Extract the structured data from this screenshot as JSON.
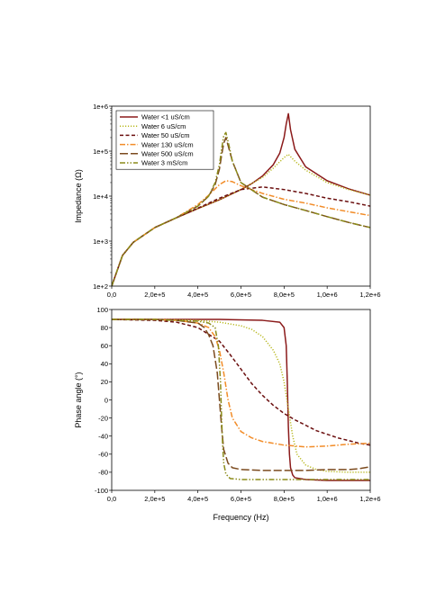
{
  "chart_data": [
    {
      "type": "line",
      "panel": "top",
      "xlabel": "",
      "ylabel": "Impedance (Ω)",
      "xlim": [
        0,
        1200000
      ],
      "ylim": [
        100,
        1000000
      ],
      "yscale": "log",
      "x_tick_labels": [
        "0,0",
        "2,0e+5",
        "4,0e+5",
        "6,0e+5",
        "8,0e+5",
        "1,0e+6",
        "1,2e+6"
      ],
      "y_tick_labels": [
        "1e+2",
        "1e+3",
        "1e+4",
        "1e+5",
        "1e+6"
      ],
      "legend_position": "top-left",
      "series": [
        {
          "name": "Water <1 uS/cm",
          "color": "#8B1A1A",
          "dash": "solid",
          "x": [
            0,
            50000,
            100000,
            200000,
            300000,
            400000,
            500000,
            600000,
            650000,
            700000,
            750000,
            780000,
            800000,
            810000,
            820000,
            830000,
            850000,
            900000,
            1000000,
            1100000,
            1200000
          ],
          "y": [
            100,
            480,
            940,
            2000,
            3300,
            5300,
            8300,
            14000,
            19000,
            28000,
            50000,
            90000,
            200000,
            400000,
            680000,
            300000,
            110000,
            45000,
            22000,
            14500,
            10500
          ]
        },
        {
          "name": "Water 6 uS/cm",
          "color": "#B8B820",
          "dash": "dotted",
          "x": [
            0,
            50000,
            100000,
            200000,
            300000,
            400000,
            500000,
            600000,
            700000,
            750000,
            800000,
            820000,
            850000,
            900000,
            1000000,
            1100000,
            1200000
          ],
          "y": [
            100,
            480,
            940,
            2000,
            3300,
            5300,
            8300,
            14000,
            26000,
            42000,
            72000,
            85000,
            60000,
            38000,
            20000,
            14000,
            10500
          ]
        },
        {
          "name": "Water 50 uS/cm",
          "color": "#6B0F0F",
          "dash": "dashed",
          "x": [
            0,
            50000,
            100000,
            200000,
            300000,
            400000,
            500000,
            600000,
            700000,
            800000,
            900000,
            1000000,
            1100000,
            1200000
          ],
          "y": [
            100,
            480,
            940,
            2000,
            3300,
            5400,
            9000,
            14000,
            16000,
            14000,
            11500,
            9000,
            7500,
            6000
          ]
        },
        {
          "name": "Water 130 uS/cm",
          "color": "#F28C28",
          "dash": "dashdot",
          "x": [
            0,
            50000,
            100000,
            200000,
            300000,
            400000,
            450000,
            500000,
            530000,
            560000,
            600000,
            700000,
            800000,
            900000,
            1000000,
            1100000,
            1200000
          ],
          "y": [
            100,
            480,
            940,
            2000,
            3300,
            6500,
            10500,
            18000,
            22000,
            21000,
            17000,
            11500,
            8500,
            7000,
            5500,
            4500,
            3700
          ]
        },
        {
          "name": "Water 500 uS/cm",
          "color": "#7B4A1E",
          "dash": "longdash",
          "x": [
            0,
            50000,
            100000,
            200000,
            300000,
            400000,
            450000,
            480000,
            500000,
            510000,
            520000,
            530000,
            545000,
            560000,
            600000,
            700000,
            800000,
            900000,
            1000000,
            1100000,
            1200000
          ],
          "y": [
            100,
            480,
            940,
            2000,
            3300,
            6000,
            10000,
            18000,
            40000,
            80000,
            150000,
            200000,
            110000,
            60000,
            20000,
            9500,
            6500,
            4800,
            3500,
            2600,
            2000
          ]
        },
        {
          "name": "Water 3 mS/cm",
          "color": "#8B8B1A",
          "dash": "dashdotdot",
          "x": [
            0,
            50000,
            100000,
            200000,
            300000,
            400000,
            450000,
            480000,
            500000,
            510000,
            520000,
            530000,
            545000,
            560000,
            600000,
            700000,
            800000,
            900000,
            1000000,
            1100000,
            1200000
          ],
          "y": [
            100,
            480,
            940,
            2000,
            3300,
            6000,
            10000,
            20000,
            50000,
            110000,
            220000,
            260000,
            130000,
            60000,
            20000,
            9500,
            6500,
            4800,
            3500,
            2600,
            2000
          ]
        }
      ]
    },
    {
      "type": "line",
      "panel": "bottom",
      "xlabel": "Frequency (Hz)",
      "ylabel": "Phase angle (°)",
      "xlim": [
        0,
        1200000
      ],
      "ylim": [
        -100,
        100
      ],
      "x_tick_labels": [
        "0,0",
        "2,0e+5",
        "4,0e+5",
        "6,0e+5",
        "8,0e+5",
        "1,0e+6",
        "1,2e+6"
      ],
      "y_tick_labels": [
        "-100",
        "-80",
        "-60",
        "-40",
        "-20",
        "0",
        "20",
        "40",
        "60",
        "80",
        "100"
      ],
      "series": [
        {
          "name": "Water <1 uS/cm",
          "color": "#8B1A1A",
          "dash": "solid",
          "x": [
            0,
            200000,
            500000,
            700000,
            780000,
            800000,
            810000,
            815000,
            820000,
            825000,
            830000,
            840000,
            850000,
            900000,
            1000000,
            1200000
          ],
          "y": [
            89,
            89,
            89,
            88,
            86,
            80,
            60,
            20,
            -30,
            -60,
            -75,
            -83,
            -86,
            -88,
            -89,
            -89
          ]
        },
        {
          "name": "Water 6 uS/cm",
          "color": "#B8B820",
          "dash": "dotted",
          "x": [
            0,
            200000,
            400000,
            500000,
            600000,
            650000,
            700000,
            750000,
            780000,
            800000,
            820000,
            840000,
            860000,
            900000,
            950000,
            1000000,
            1100000,
            1200000
          ],
          "y": [
            89,
            89,
            88,
            86,
            82,
            78,
            70,
            55,
            40,
            20,
            -10,
            -40,
            -60,
            -72,
            -77,
            -79,
            -80,
            -80
          ]
        },
        {
          "name": "Water 50 uS/cm",
          "color": "#6B0F0F",
          "dash": "dashed",
          "x": [
            0,
            200000,
            300000,
            400000,
            500000,
            550000,
            600000,
            650000,
            700000,
            750000,
            800000,
            850000,
            900000,
            950000,
            1000000,
            1050000,
            1100000,
            1150000,
            1200000
          ],
          "y": [
            89,
            88,
            86,
            80,
            65,
            50,
            34,
            18,
            5,
            -6,
            -15,
            -22,
            -28,
            -34,
            -38,
            -42,
            -45,
            -48,
            -50
          ]
        },
        {
          "name": "Water 130 uS/cm",
          "color": "#F28C28",
          "dash": "dashdot",
          "x": [
            0,
            200000,
            300000,
            400000,
            450000,
            480000,
            500000,
            520000,
            540000,
            560000,
            600000,
            650000,
            700000,
            800000,
            900000,
            1000000,
            1100000,
            1200000
          ],
          "y": [
            89,
            89,
            88,
            85,
            80,
            70,
            55,
            30,
            0,
            -20,
            -35,
            -42,
            -46,
            -50,
            -52,
            -51,
            -49,
            -48
          ]
        },
        {
          "name": "Water 500 uS/cm",
          "color": "#7B4A1E",
          "dash": "longdash",
          "x": [
            0,
            200000,
            300000,
            400000,
            430000,
            450000,
            470000,
            490000,
            500000,
            510000,
            520000,
            540000,
            560000,
            600000,
            700000,
            800000,
            900000,
            1000000,
            1100000,
            1150000,
            1200000
          ],
          "y": [
            89,
            89,
            88,
            85,
            80,
            72,
            60,
            30,
            0,
            -30,
            -55,
            -70,
            -75,
            -77,
            -78,
            -78,
            -78,
            -77,
            -77,
            -76,
            -74
          ]
        },
        {
          "name": "Water 3 mS/cm",
          "color": "#8B8B1A",
          "dash": "dashdotdot",
          "x": [
            0,
            200000,
            300000,
            400000,
            450000,
            480000,
            495000,
            505000,
            510000,
            515000,
            520000,
            530000,
            550000,
            600000,
            700000,
            800000,
            900000,
            1000000,
            1200000
          ],
          "y": [
            89,
            89,
            88,
            87,
            85,
            80,
            60,
            20,
            -20,
            -50,
            -70,
            -82,
            -87,
            -88,
            -88,
            -88,
            -88,
            -88,
            -88
          ]
        }
      ]
    }
  ]
}
